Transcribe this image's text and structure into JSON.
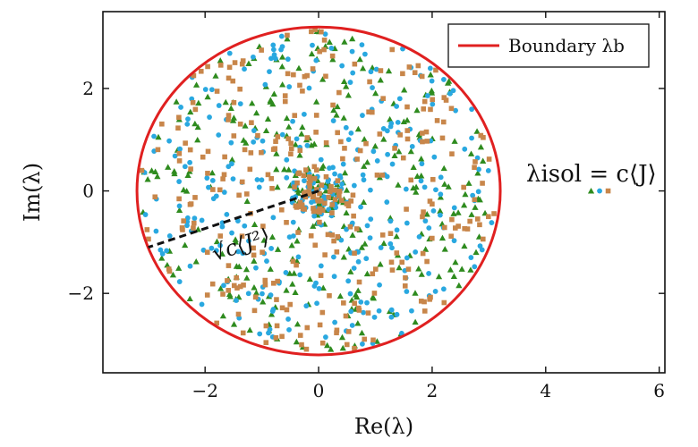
{
  "chart_data": {
    "type": "scatter",
    "xlabel": "Re(λ)",
    "ylabel": "Im(λ)",
    "xlim": [
      -3.8,
      6.1
    ],
    "ylim": [
      -3.55,
      3.5
    ],
    "x_ticks": [
      -2,
      0,
      2,
      4,
      6
    ],
    "y_ticks": [
      -2,
      0,
      2
    ],
    "x_tick_labels": [
      "−2",
      "0",
      "2",
      "4",
      "6"
    ],
    "y_tick_labels": [
      "−2",
      "0",
      "2"
    ],
    "grid": false,
    "legend_position": "top-right",
    "boundary": {
      "label": "Boundary λb",
      "shape": "circle",
      "radius": 3.2,
      "color": "#e02020"
    },
    "isolated_eigenvalues": {
      "label": "λisol = c⟨J⟩",
      "points": [
        {
          "x": 4.8,
          "y": 0.0,
          "marker": "triangle",
          "color": "#2e8b1e"
        },
        {
          "x": 4.95,
          "y": 0.0,
          "marker": "circle",
          "color": "#29a8e0"
        },
        {
          "x": 5.1,
          "y": 0.0,
          "marker": "square",
          "color": "#c8864a"
        }
      ]
    },
    "radius_annotation": {
      "label": "√c⟨J²⟩",
      "from": [
        0.0,
        0.0
      ],
      "to": [
        -3.0,
        -1.1
      ]
    },
    "series": [
      {
        "marker": "triangle",
        "color": "#2e8b1e",
        "count": 330
      },
      {
        "marker": "circle",
        "color": "#29a8e0",
        "count": 330
      },
      {
        "marker": "square",
        "color": "#c8864a",
        "count": 330
      }
    ],
    "bulk_distribution": "uniform in disk of radius 3.2 centered at origin, denser near center"
  }
}
